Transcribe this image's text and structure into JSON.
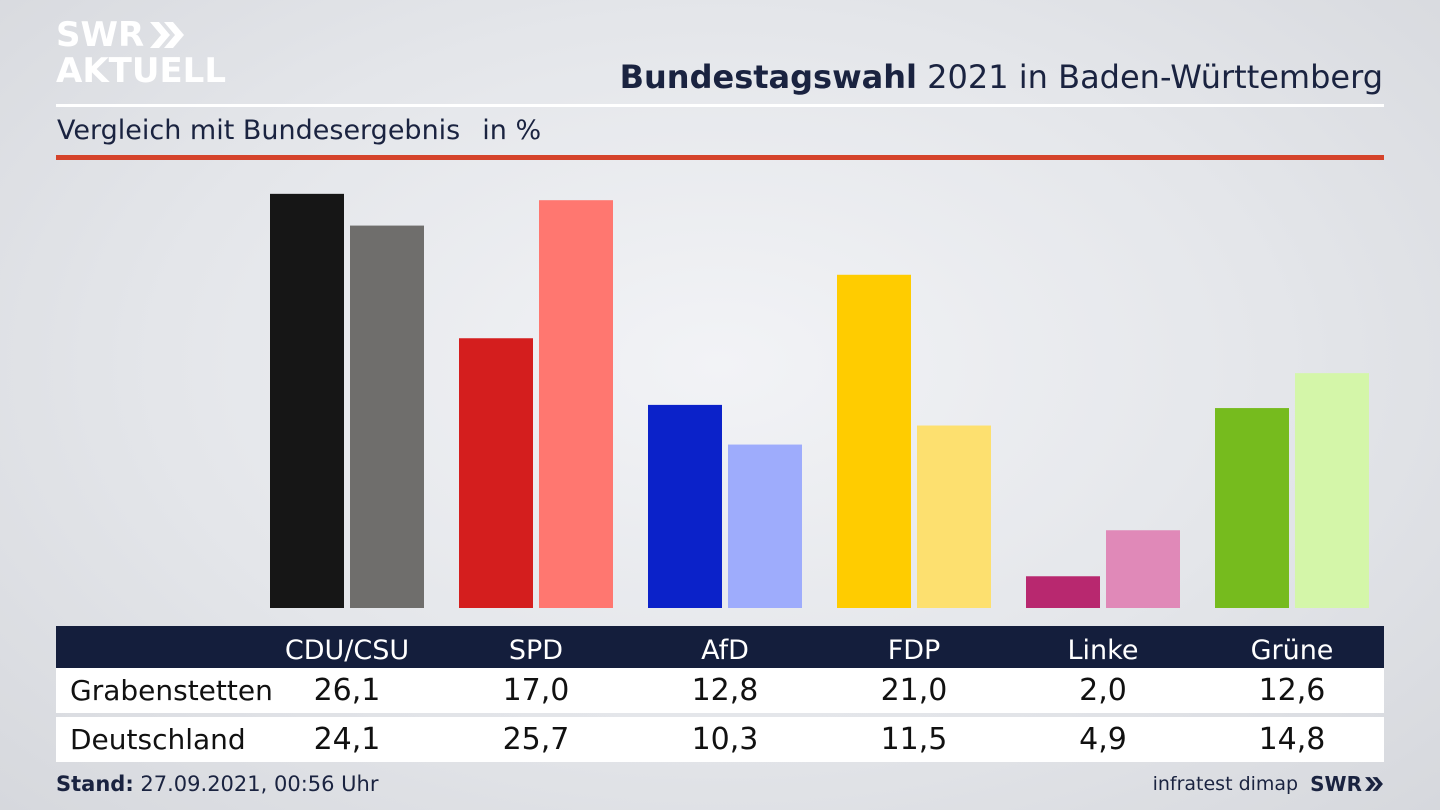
{
  "logo": {
    "line1": "SWR",
    "line2": "AKTUELL"
  },
  "header": {
    "title_bold": "Bundestagswahl",
    "title_rest": " 2021 in Baden-Württemberg",
    "subtitle": "Vergleich mit Bundesergebnis",
    "unit": "in %"
  },
  "chart_data": {
    "type": "bar",
    "title": "Bundestagswahl 2021 in Baden-Württemberg",
    "subtitle": "Vergleich mit Bundesergebnis",
    "unit": "in %",
    "categories": [
      "CDU/CSU",
      "SPD",
      "AfD",
      "FDP",
      "Linke",
      "Grüne"
    ],
    "series": [
      {
        "name": "Grabenstetten",
        "values": [
          "26,1",
          "17,0",
          "12,8",
          "21,0",
          "2,0",
          "12,6"
        ]
      },
      {
        "name": "Deutschland",
        "values": [
          "24,1",
          "25,7",
          "10,3",
          "11,5",
          "4,9",
          "14,8"
        ]
      }
    ],
    "colors": {
      "primary": [
        "#161616",
        "#d41e1e",
        "#0b22c9",
        "#ffcc00",
        "#b8286f",
        "#76bb1e"
      ],
      "secondary": [
        "#6f6e6c",
        "#ff7770",
        "#9eacfc",
        "#fde06f",
        "#e089b8",
        "#d4f6a9"
      ]
    },
    "ylim": [
      0,
      26.5
    ],
    "legend": "table-below"
  },
  "footer": {
    "stand_label": "Stand:",
    "stand_value": " 27.09.2021, 00:56 Uhr",
    "source": "infratest dimap",
    "brand": "SWR"
  }
}
